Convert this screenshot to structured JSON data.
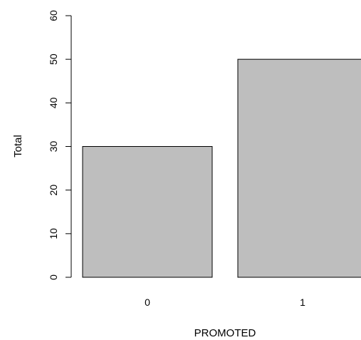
{
  "chart_data": {
    "type": "bar",
    "categories": [
      "0",
      "1"
    ],
    "values": [
      30,
      50
    ],
    "xlabel": "PROMOTED",
    "ylabel": "Total",
    "ylim": [
      0,
      60
    ],
    "yticks": [
      "0",
      "10",
      "20",
      "30",
      "40",
      "50",
      "60"
    ],
    "grid": false,
    "bar_color": "#bebebe",
    "bar_border_color": "#000000"
  }
}
